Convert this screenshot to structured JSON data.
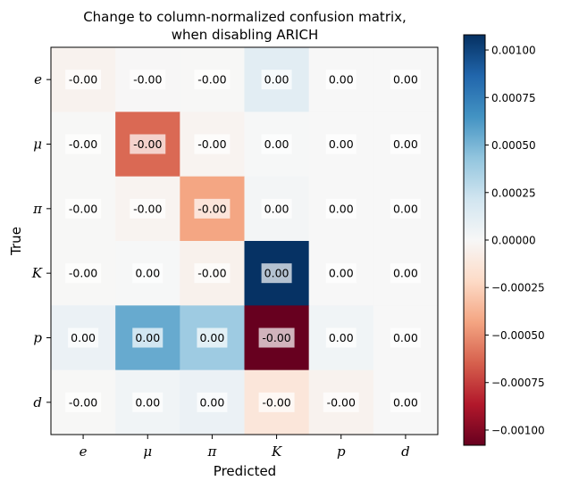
{
  "chart_data": {
    "type": "heatmap",
    "title": "Change to column-normalized confusion matrix,",
    "title_line2": "when disabling ARICH",
    "xlabel": "Predicted",
    "ylabel": "True",
    "x_categories": [
      "e",
      "μ",
      "π",
      "K",
      "p",
      "d"
    ],
    "y_categories": [
      "e",
      "μ",
      "π",
      "K",
      "p",
      "d"
    ],
    "values": [
      [
        -4e-05,
        -5e-06,
        -3e-06,
        0.00012,
        0.0,
        0.0
      ],
      [
        -3e-06,
        -0.00062,
        -3e-05,
        3e-06,
        0.0,
        0.0
      ],
      [
        -3e-06,
        -3e-05,
        -0.00043,
        2e-05,
        0.0,
        0.0
      ],
      [
        -3e-06,
        3e-06,
        -5e-05,
        0.00107,
        0.0,
        0.0
      ],
      [
        7e-05,
        0.00055,
        0.00039,
        -0.00108,
        4e-05,
        0.0
      ],
      [
        -3e-06,
        4e-05,
        7e-05,
        -0.00013,
        -4e-05,
        0.0
      ]
    ],
    "labels": [
      [
        "-0.00",
        "-0.00",
        "-0.00",
        "0.00",
        "0.00",
        "0.00"
      ],
      [
        "-0.00",
        "-0.00",
        "-0.00",
        "0.00",
        "0.00",
        "0.00"
      ],
      [
        "-0.00",
        "-0.00",
        "-0.00",
        "0.00",
        "0.00",
        "0.00"
      ],
      [
        "-0.00",
        "0.00",
        "-0.00",
        "0.00",
        "0.00",
        "0.00"
      ],
      [
        "0.00",
        "0.00",
        "0.00",
        "-0.00",
        "0.00",
        "0.00"
      ],
      [
        "-0.00",
        "0.00",
        "0.00",
        "-0.00",
        "-0.00",
        "0.00"
      ]
    ],
    "colormap": "RdBu",
    "vmin": -0.00108,
    "vmax": 0.00108,
    "colorbar_ticks": [
      0.001,
      0.00075,
      0.0005,
      0.00025,
      0.0,
      -0.00025,
      -0.0005,
      -0.00075,
      -0.001
    ],
    "colorbar_tick_labels": [
      "0.00100",
      "0.00075",
      "0.00050",
      "0.00025",
      "0.00000",
      "−0.00025",
      "−0.00050",
      "−0.00075",
      "−0.00100"
    ],
    "grid": false,
    "legend": "colorbar-right"
  }
}
